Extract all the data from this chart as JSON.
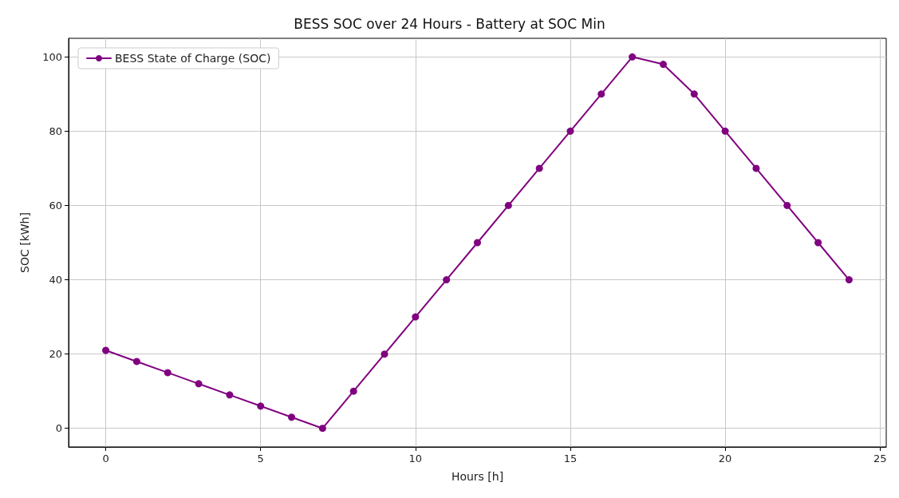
{
  "chart_data": {
    "type": "line",
    "title": "BESS SOC over 24 Hours - Battery at SOC Min",
    "xlabel": "Hours [h]",
    "ylabel": "SOC [kWh]",
    "x": [
      0,
      1,
      2,
      3,
      4,
      5,
      6,
      7,
      8,
      9,
      10,
      11,
      12,
      13,
      14,
      15,
      16,
      17,
      18,
      19,
      20,
      21,
      22,
      23,
      24
    ],
    "series": [
      {
        "name": "BESS State of Charge (SOC)",
        "color": "#800080",
        "values": [
          21,
          18,
          15,
          12,
          9,
          6,
          3,
          0,
          10,
          20,
          30,
          40,
          50,
          60,
          70,
          80,
          90,
          100,
          98,
          90,
          80,
          70,
          60,
          50,
          40
        ]
      }
    ],
    "xlim": [
      -1.2,
      25.2
    ],
    "xticks": [
      0,
      5,
      10,
      15,
      20,
      25
    ],
    "ylim": [
      -5,
      105
    ],
    "yticks": [
      0,
      20,
      40,
      60,
      80,
      100
    ],
    "grid": true,
    "legend": "top left",
    "marker": "circle",
    "line_style": "solid"
  }
}
